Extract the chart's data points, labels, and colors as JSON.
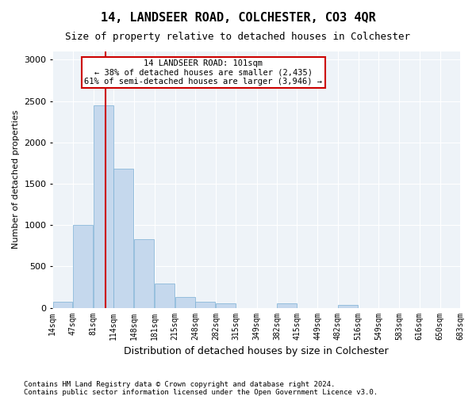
{
  "title": "14, LANDSEER ROAD, COLCHESTER, CO3 4QR",
  "subtitle": "Size of property relative to detached houses in Colchester",
  "xlabel": "Distribution of detached houses by size in Colchester",
  "ylabel": "Number of detached properties",
  "bar_color": "#c5d8ed",
  "bar_edge_color": "#7bafd4",
  "bg_color": "#eef3f8",
  "grid_color": "#ffffff",
  "annotation_box_color": "#cc0000",
  "annotation_text": "14 LANDSEER ROAD: 101sqm\n← 38% of detached houses are smaller (2,435)\n61% of semi-detached houses are larger (3,946) →",
  "vline_x": 101,
  "vline_color": "#cc0000",
  "bins": [
    14,
    47,
    81,
    114,
    148,
    181,
    215,
    248,
    282,
    315,
    349,
    382,
    415,
    449,
    482,
    516,
    549,
    583,
    616,
    650,
    683
  ],
  "bin_labels": [
    "14sqm",
    "47sqm",
    "81sqm",
    "114sqm",
    "148sqm",
    "181sqm",
    "215sqm",
    "248sqm",
    "282sqm",
    "315sqm",
    "349sqm",
    "382sqm",
    "415sqm",
    "449sqm",
    "482sqm",
    "516sqm",
    "549sqm",
    "583sqm",
    "616sqm",
    "650sqm",
    "683sqm"
  ],
  "values": [
    75,
    1000,
    2450,
    1680,
    830,
    290,
    130,
    75,
    55,
    0,
    0,
    55,
    0,
    0,
    30,
    0,
    0,
    0,
    0,
    0
  ],
  "ylim": [
    0,
    3100
  ],
  "yticks": [
    0,
    500,
    1000,
    1500,
    2000,
    2500,
    3000
  ],
  "footnote1": "Contains HM Land Registry data © Crown copyright and database right 2024.",
  "footnote2": "Contains public sector information licensed under the Open Government Licence v3.0."
}
